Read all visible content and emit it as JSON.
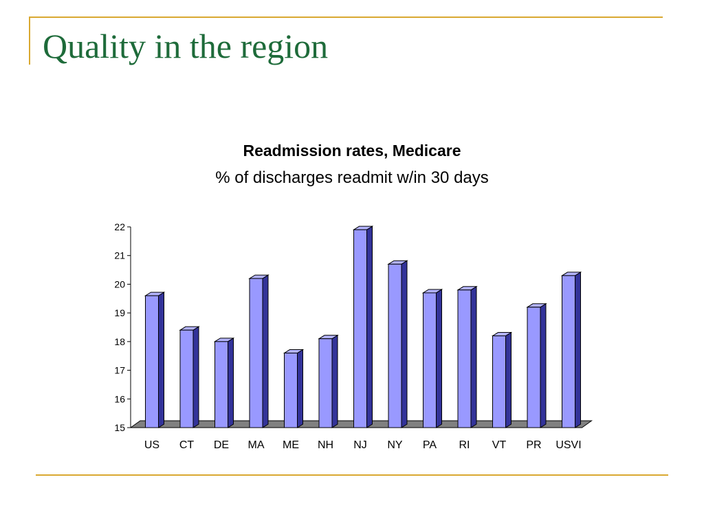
{
  "slide": {
    "title": "Quality in the region"
  },
  "colors": {
    "accent_rule": "#d9a830",
    "title": "#1e6b3a",
    "bar_front": "#9999ff",
    "bar_top": "#b3b3ff",
    "bar_side": "#333399",
    "floor": "#808080"
  },
  "chart_data": {
    "type": "bar",
    "style": "3d-column",
    "title": "Readmission rates, Medicare",
    "subtitle": "% of discharges readmit w/in 30 days",
    "xlabel": "",
    "ylabel": "",
    "categories": [
      "US",
      "CT",
      "DE",
      "MA",
      "ME",
      "NH",
      "NJ",
      "NY",
      "PA",
      "RI",
      "VT",
      "PR",
      "USVI"
    ],
    "values": [
      19.6,
      18.4,
      18.0,
      20.2,
      17.6,
      18.1,
      21.9,
      20.7,
      19.7,
      19.8,
      18.2,
      19.2,
      20.3
    ],
    "ylim": [
      15,
      22
    ],
    "yticks": [
      15,
      16,
      17,
      18,
      19,
      20,
      21,
      22
    ],
    "grid": false,
    "legend": "none"
  }
}
